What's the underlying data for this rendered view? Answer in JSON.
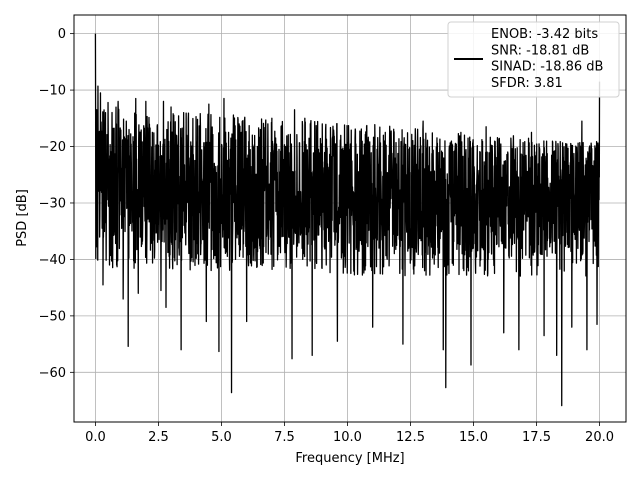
{
  "chart_data": {
    "type": "line",
    "title": "",
    "xlabel": "Frequency [MHz]",
    "ylabel": "PSD [dB]",
    "xlim": [
      -0.85,
      21.05
    ],
    "ylim": [
      -68.8,
      3.3
    ],
    "x_ticks": [
      0.0,
      2.5,
      5.0,
      7.5,
      10.0,
      12.5,
      15.0,
      17.5,
      20.0
    ],
    "x_tick_labels": [
      "0.0",
      "2.5",
      "5.0",
      "7.5",
      "10.0",
      "12.5",
      "15.0",
      "17.5",
      "20.0"
    ],
    "y_ticks": [
      0,
      -10,
      -20,
      -30,
      -40,
      -50,
      -60
    ],
    "y_tick_labels": [
      "0",
      "−10",
      "−20",
      "−30",
      "−40",
      "−50",
      "−60"
    ],
    "grid": true,
    "legend_position": "top-right",
    "series": [
      {
        "name": "ENOB: -3.42 bits\nSNR: -18.81 dB\nSINAD: -18.86 dB\nSFDR: 3.81",
        "color": "#000000",
        "x_range": [
          0.0,
          20.0
        ],
        "spikes": [
          [
            0.0,
            0.0
          ],
          [
            0.05,
            -13.5
          ],
          [
            0.1,
            -9.3
          ],
          [
            0.2,
            -10.5
          ],
          [
            0.3,
            -44.5
          ],
          [
            0.4,
            -14.0
          ],
          [
            0.5,
            -12.2
          ],
          [
            0.9,
            -12.0
          ],
          [
            1.1,
            -47.0
          ],
          [
            1.3,
            -55.4
          ],
          [
            1.6,
            -11.5
          ],
          [
            1.7,
            -46.0
          ],
          [
            2.0,
            -12.0
          ],
          [
            2.6,
            -45.5
          ],
          [
            2.7,
            -12.0
          ],
          [
            2.8,
            -48.5
          ],
          [
            3.0,
            -13.0
          ],
          [
            3.4,
            -56.0
          ],
          [
            3.5,
            -14.0
          ],
          [
            4.4,
            -51.0
          ],
          [
            4.5,
            -12.5
          ],
          [
            4.9,
            -56.3
          ],
          [
            5.1,
            -11.5
          ],
          [
            5.4,
            -63.6
          ],
          [
            5.7,
            -16.0
          ],
          [
            6.0,
            -51.0
          ],
          [
            7.0,
            -15.0
          ],
          [
            7.8,
            -57.6
          ],
          [
            7.9,
            -13.5
          ],
          [
            8.6,
            -57.0
          ],
          [
            9.0,
            -16.0
          ],
          [
            9.6,
            -54.5
          ],
          [
            10.3,
            -18.5
          ],
          [
            11.0,
            -52.0
          ],
          [
            11.5,
            -17.5
          ],
          [
            12.2,
            -55.0
          ],
          [
            13.0,
            -15.5
          ],
          [
            13.8,
            -56.0
          ],
          [
            13.9,
            -62.7
          ],
          [
            14.5,
            -17.5
          ],
          [
            14.9,
            -58.7
          ],
          [
            15.5,
            -16.5
          ],
          [
            16.2,
            -53.0
          ],
          [
            16.8,
            -56.0
          ],
          [
            17.3,
            -17.5
          ],
          [
            17.8,
            -53.5
          ],
          [
            18.3,
            -57.0
          ],
          [
            18.5,
            -65.9
          ],
          [
            18.9,
            -52.0
          ],
          [
            19.3,
            -15.5
          ],
          [
            19.5,
            -56.0
          ],
          [
            19.9,
            -51.5
          ],
          [
            20.0,
            -8.5
          ]
        ],
        "noise_floor_envelope": {
          "upper": [
            -12,
            -14,
            -14,
            -14,
            -15,
            -15,
            -16,
            -16,
            -17,
            -18,
            -18,
            -19,
            -19
          ],
          "lower": [
            -42,
            -42,
            -42,
            -42,
            -42,
            -42,
            -43,
            -43,
            -43,
            -43,
            -43,
            -43,
            -43
          ],
          "dense_upper": [
            -16,
            -17,
            -17,
            -17,
            -18,
            -18,
            -19,
            -19,
            -20,
            -20,
            -20,
            -20,
            -20
          ],
          "dense_lower": [
            -37,
            -37,
            -38,
            -38,
            -38,
            -38,
            -38,
            -39,
            -39,
            -39,
            -39,
            -39,
            -39
          ]
        }
      }
    ]
  }
}
